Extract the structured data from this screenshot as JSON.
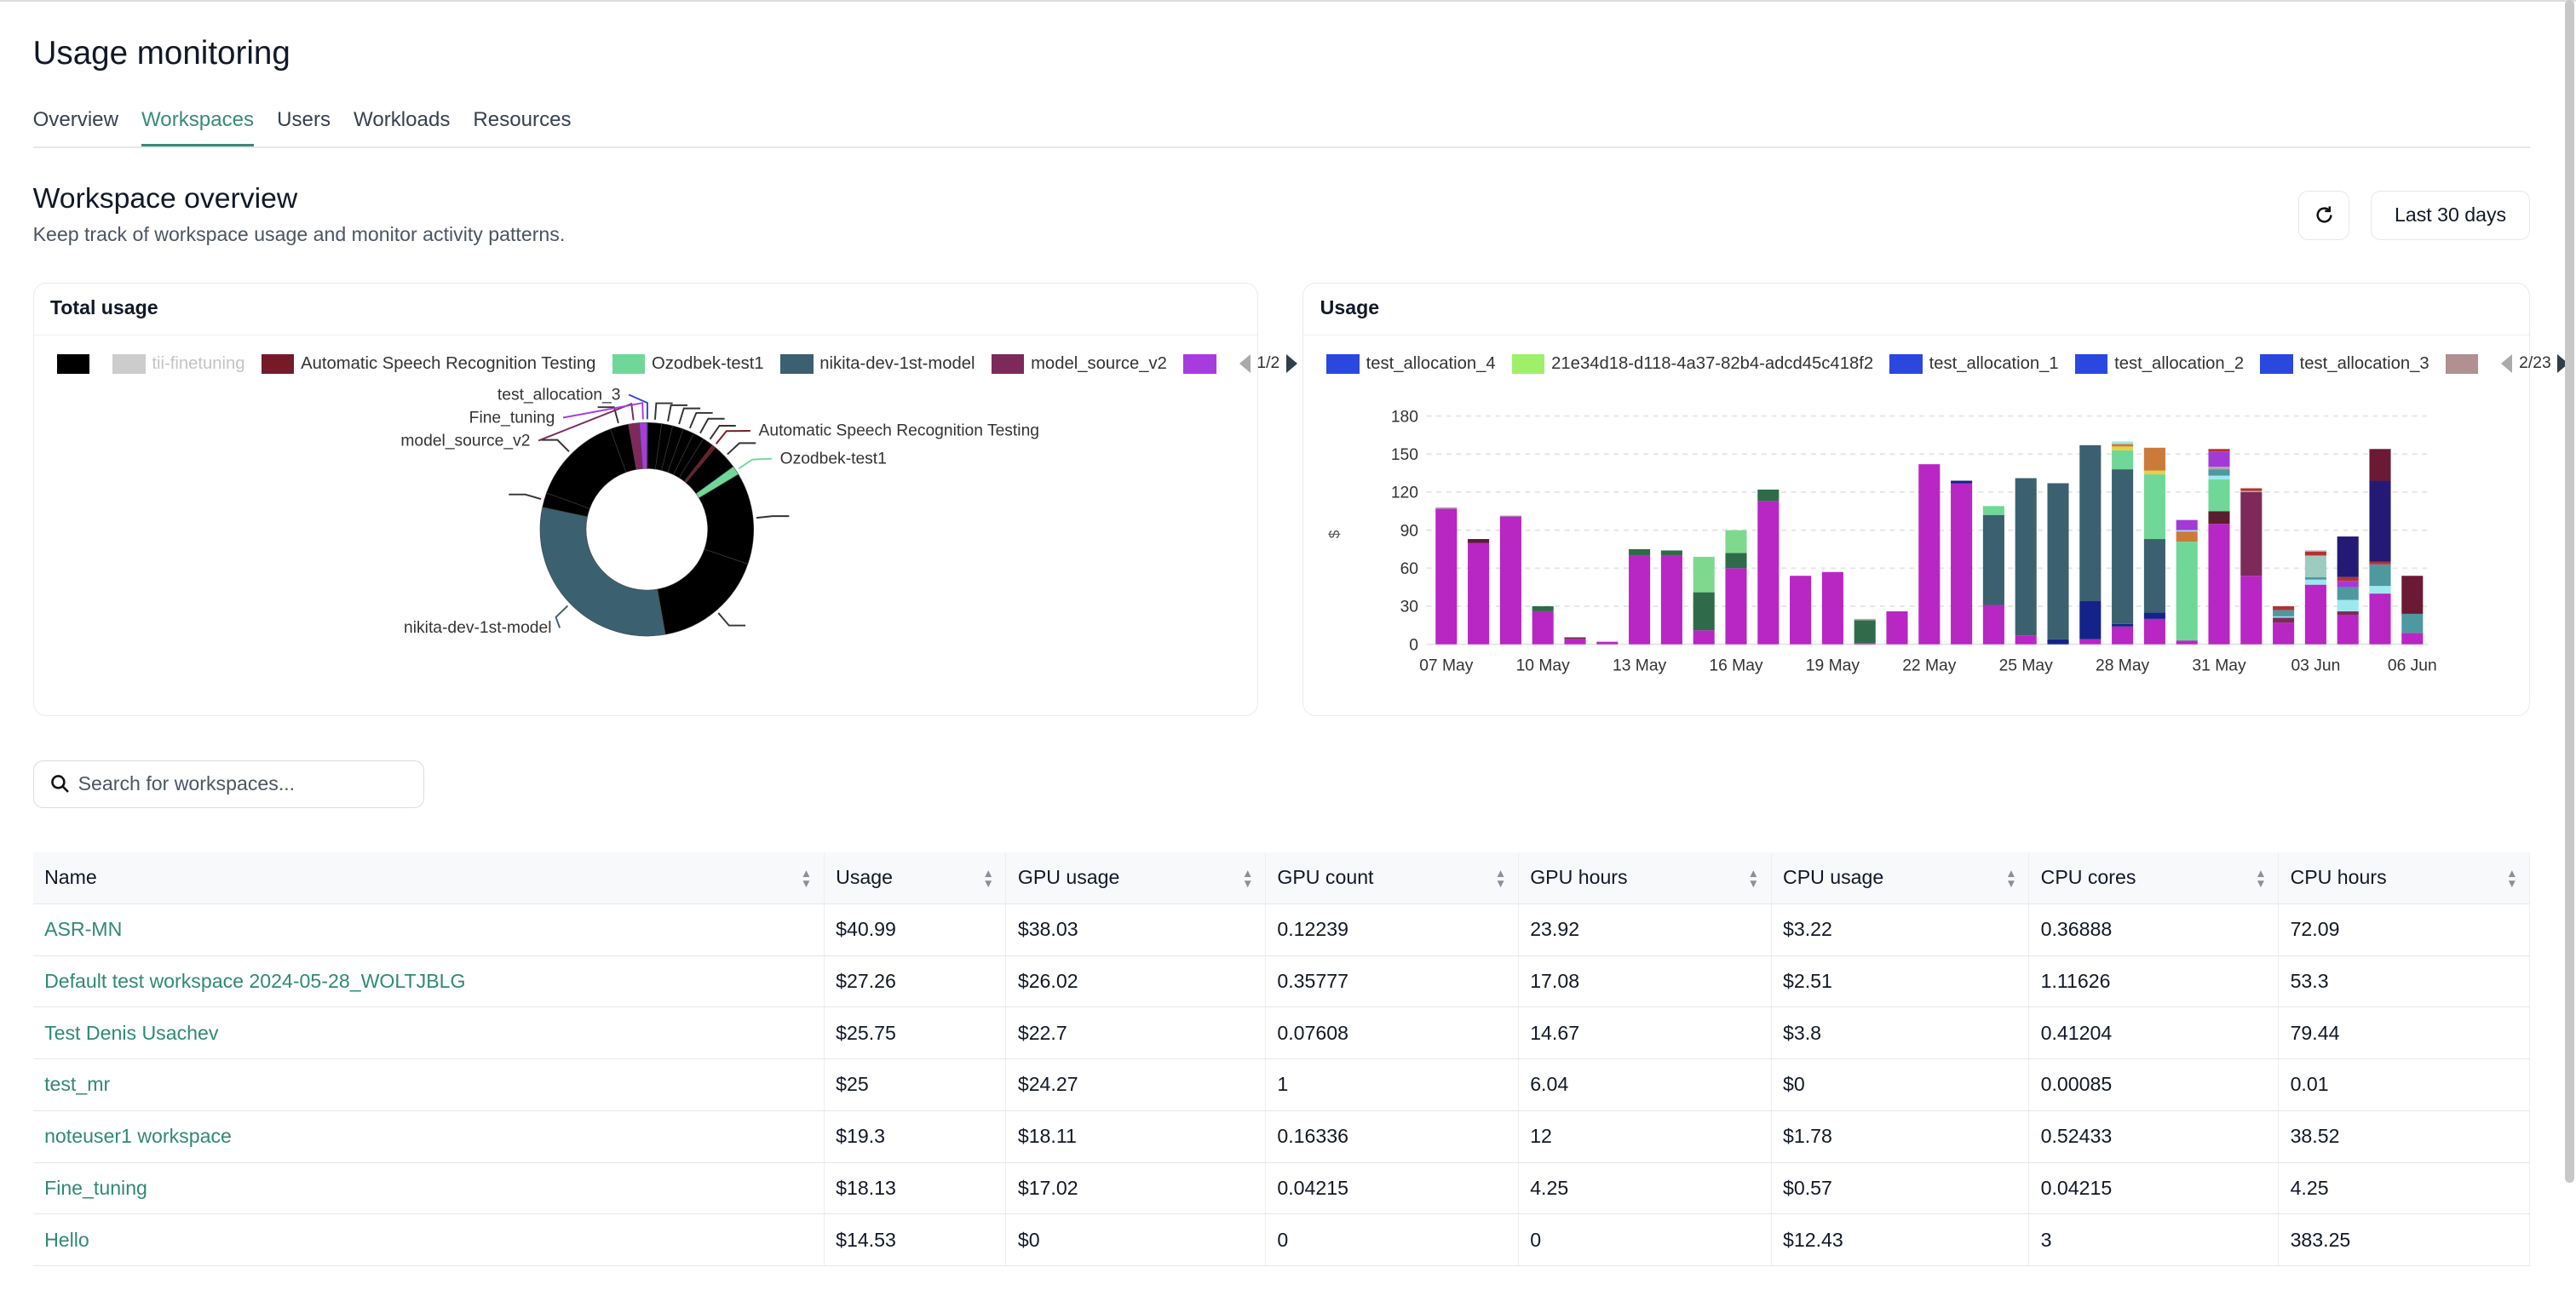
{
  "page": {
    "title": "Usage monitoring"
  },
  "tabs": [
    {
      "label": "Overview"
    },
    {
      "label": "Workspaces",
      "active": true
    },
    {
      "label": "Users"
    },
    {
      "label": "Workloads"
    },
    {
      "label": "Resources"
    }
  ],
  "section": {
    "title": "Workspace overview",
    "subtitle": "Keep track of workspace usage and monitor activity patterns.",
    "refresh_icon": "refresh-icon",
    "range_label": "Last 30 days"
  },
  "total_card": {
    "title": "Total usage",
    "legend": [
      {
        "label": "",
        "color": "#000000"
      },
      {
        "label": "tii-finetuning",
        "color": "#cccccc",
        "disabled": true
      },
      {
        "label": "Automatic Speech Recognition Testing",
        "color": "#761a2a"
      },
      {
        "label": "Ozodbek-test1",
        "color": "#6fd898"
      },
      {
        "label": "nikita-dev-1st-model",
        "color": "#3b6070"
      },
      {
        "label": "model_source_v2",
        "color": "#7d2a5a"
      },
      {
        "label": "",
        "color": "#a83be0"
      }
    ],
    "pager": "1/2"
  },
  "usage_card": {
    "title": "Usage",
    "legend": [
      {
        "label": "test_allocation_4",
        "color": "#2a47e0"
      },
      {
        "label": "21e34d18-d118-4a37-82b4-adcd45c418f2",
        "color": "#9ef06a"
      },
      {
        "label": "test_allocation_1",
        "color": "#2a47e0"
      },
      {
        "label": "test_allocation_2",
        "color": "#2a47e0"
      },
      {
        "label": "test_allocation_3",
        "color": "#2a47e0"
      },
      {
        "label": "",
        "color": "#b09090"
      }
    ],
    "pager": "2/23"
  },
  "chart_data": [
    {
      "type": "pie",
      "donut": true,
      "slices": [
        {
          "label": "test_allocation_3",
          "value": 0.5,
          "color": "#2a47e0",
          "shown": true
        },
        {
          "label": "",
          "value": 7.5,
          "color": "#000000"
        },
        {
          "label": "",
          "value": 6,
          "color": "#000000"
        },
        {
          "label": "",
          "value": 6,
          "color": "#000000"
        },
        {
          "label": "",
          "value": 6,
          "color": "#000000"
        },
        {
          "label": "",
          "value": 6,
          "color": "#000000"
        },
        {
          "label": "",
          "value": 6,
          "color": "#000000"
        },
        {
          "label": "Automatic Speech Recognition Testing",
          "value": 2,
          "color": "#761a2a",
          "shown": true
        },
        {
          "label": "",
          "value": 14,
          "color": "#000000"
        },
        {
          "label": "Ozodbek-test1",
          "value": 5,
          "color": "#6fd898",
          "shown": true
        },
        {
          "label": "",
          "value": 50,
          "color": "#000000"
        },
        {
          "label": "",
          "value": 61,
          "color": "#000000"
        },
        {
          "label": "nikita-dev-1st-model",
          "value": 112,
          "color": "#3b6070",
          "shown": true
        },
        {
          "label": "",
          "value": 8,
          "color": "#000000"
        },
        {
          "label": "",
          "value": 50,
          "color": "#000000"
        },
        {
          "label": "",
          "value": 10,
          "color": "#000000"
        },
        {
          "label": "model_source_v2",
          "value": 6,
          "color": "#7d2a5a",
          "shown": true
        },
        {
          "label": "Fine_tuning",
          "value": 4,
          "color": "#a83be0",
          "shown": true
        }
      ]
    },
    {
      "type": "bar",
      "stacked": true,
      "ylabel": "$",
      "ylim": [
        0,
        180
      ],
      "yticks": [
        "0",
        "30",
        "60",
        "90",
        "120",
        "150",
        "180"
      ],
      "grid": true,
      "xticks": [
        "07 May",
        "10 May",
        "13 May",
        "16 May",
        "19 May",
        "22 May",
        "25 May",
        "28 May",
        "31 May",
        "03 Jun",
        "06 Jun"
      ],
      "palette": {
        "magenta": "#b826c4",
        "dkgreen": "#2f6b4a",
        "ltgreen": "#7ed98f",
        "dkred": "#5a1f2e",
        "slate": "#3b6070",
        "navy": "#14238a",
        "mint": "#6fd898",
        "yellow": "#e8d040",
        "orange": "#cc7a3a",
        "cyan": "#9de8ee",
        "teal": "#4e98a0",
        "purple": "#a23ad8",
        "red": "#b83030",
        "plum": "#7d2a5a",
        "sage": "#9ecbc0",
        "indigo": "#241a75",
        "wine": "#6a1a35",
        "grey": "#b0a8a8"
      },
      "days": [
        {
          "x": "07 May",
          "segments": [
            [
              "magenta",
              107
            ],
            [
              "grey",
              1
            ]
          ]
        },
        {
          "x": "08 May",
          "segments": [
            [
              "magenta",
              80
            ],
            [
              "dkred",
              3
            ]
          ]
        },
        {
          "x": "09 May",
          "segments": [
            [
              "magenta",
              101
            ],
            [
              "grey",
              0.5
            ]
          ]
        },
        {
          "x": "10 May",
          "segments": [
            [
              "magenta",
              26
            ],
            [
              "dkgreen",
              4
            ]
          ]
        },
        {
          "x": "11 May",
          "segments": [
            [
              "magenta",
              4
            ],
            [
              "plum",
              1.5
            ]
          ]
        },
        {
          "x": "12 May",
          "segments": [
            [
              "magenta",
              2
            ]
          ]
        },
        {
          "x": "13 May",
          "segments": [
            [
              "magenta",
              70
            ],
            [
              "dkgreen",
              5
            ]
          ]
        },
        {
          "x": "14 May",
          "segments": [
            [
              "magenta",
              70
            ],
            [
              "dkgreen",
              4
            ]
          ]
        },
        {
          "x": "15 May",
          "segments": [
            [
              "magenta",
              11
            ],
            [
              "dkgreen",
              30
            ],
            [
              "ltgreen",
              28
            ]
          ]
        },
        {
          "x": "16 May",
          "segments": [
            [
              "magenta",
              60
            ],
            [
              "dkgreen",
              12
            ],
            [
              "ltgreen",
              18
            ]
          ]
        },
        {
          "x": "17 May",
          "segments": [
            [
              "magenta",
              113
            ],
            [
              "dkgreen",
              9
            ]
          ]
        },
        {
          "x": "18 May",
          "segments": [
            [
              "magenta",
              54
            ]
          ]
        },
        {
          "x": "19 May",
          "segments": [
            [
              "magenta",
              57
            ]
          ]
        },
        {
          "x": "20 May",
          "segments": [
            [
              "magenta",
              1
            ],
            [
              "dkgreen",
              18
            ],
            [
              "grey",
              1
            ]
          ]
        },
        {
          "x": "21 May",
          "segments": [
            [
              "magenta",
              26
            ]
          ]
        },
        {
          "x": "22 May",
          "segments": [
            [
              "magenta",
              142
            ]
          ]
        },
        {
          "x": "23 May",
          "segments": [
            [
              "magenta",
              127
            ],
            [
              "navy",
              2
            ]
          ]
        },
        {
          "x": "24 May",
          "segments": [
            [
              "magenta",
              31
            ],
            [
              "slate",
              71
            ],
            [
              "mint",
              7
            ]
          ]
        },
        {
          "x": "25 May",
          "segments": [
            [
              "magenta",
              7
            ],
            [
              "slate",
              124
            ]
          ]
        },
        {
          "x": "26 May",
          "segments": [
            [
              "navy",
              4
            ],
            [
              "slate",
              123
            ]
          ]
        },
        {
          "x": "27 May",
          "segments": [
            [
              "magenta",
              4
            ],
            [
              "navy",
              30
            ],
            [
              "slate",
              123
            ]
          ]
        },
        {
          "x": "28 May",
          "segments": [
            [
              "magenta",
              14
            ],
            [
              "navy",
              2
            ],
            [
              "slate",
              122
            ],
            [
              "mint",
              15
            ],
            [
              "yellow",
              3
            ],
            [
              "orange",
              2
            ],
            [
              "cyan",
              2
            ]
          ]
        },
        {
          "x": "29 May",
          "segments": [
            [
              "magenta",
              20
            ],
            [
              "navy",
              5
            ],
            [
              "slate",
              58
            ],
            [
              "mint",
              51
            ],
            [
              "yellow",
              3
            ],
            [
              "orange",
              18
            ]
          ]
        },
        {
          "x": "30 May",
          "segments": [
            [
              "magenta",
              3
            ],
            [
              "mint",
              78
            ],
            [
              "orange",
              8
            ],
            [
              "cyan",
              1
            ],
            [
              "purple",
              8
            ]
          ]
        },
        {
          "x": "31 May",
          "segments": [
            [
              "magenta",
              95
            ],
            [
              "dkred",
              10
            ],
            [
              "mint",
              25
            ],
            [
              "cyan",
              3
            ],
            [
              "teal",
              5
            ],
            [
              "grey",
              2
            ],
            [
              "purple",
              12
            ],
            [
              "red",
              2
            ]
          ]
        },
        {
          "x": "01 Jun",
          "segments": [
            [
              "magenta",
              54
            ],
            [
              "plum",
              66
            ],
            [
              "grey",
              1
            ],
            [
              "red",
              2
            ]
          ]
        },
        {
          "x": "02 Jun",
          "segments": [
            [
              "magenta",
              17
            ],
            [
              "plum",
              4
            ],
            [
              "cyan",
              1
            ],
            [
              "teal",
              5
            ],
            [
              "red",
              3
            ]
          ]
        },
        {
          "x": "03 Jun",
          "segments": [
            [
              "magenta",
              47
            ],
            [
              "cyan",
              4
            ],
            [
              "teal",
              2
            ],
            [
              "sage",
              17
            ],
            [
              "red",
              3
            ],
            [
              "grey",
              1
            ]
          ]
        },
        {
          "x": "04 Jun",
          "segments": [
            [
              "magenta",
              23
            ],
            [
              "plum",
              3
            ],
            [
              "cyan",
              9
            ],
            [
              "teal",
              10
            ],
            [
              "purple",
              5
            ],
            [
              "red",
              3
            ],
            [
              "indigo",
              32
            ]
          ]
        },
        {
          "x": "05 Jun",
          "segments": [
            [
              "magenta",
              40
            ],
            [
              "cyan",
              6
            ],
            [
              "teal",
              17
            ],
            [
              "red",
              2
            ],
            [
              "indigo",
              64
            ],
            [
              "wine",
              25
            ]
          ]
        },
        {
          "x": "06 Jun",
          "segments": [
            [
              "magenta",
              9
            ],
            [
              "teal",
              15
            ],
            [
              "wine",
              30
            ]
          ]
        }
      ]
    }
  ],
  "search": {
    "placeholder": "Search for workspaces..."
  },
  "table": {
    "columns": [
      "Name",
      "Usage",
      "GPU usage",
      "GPU count",
      "GPU hours",
      "CPU usage",
      "CPU cores",
      "CPU hours"
    ],
    "rows": [
      [
        "ASR-MN",
        "$40.99",
        "$38.03",
        "0.12239",
        "23.92",
        "$3.22",
        "0.36888",
        "72.09"
      ],
      [
        "Default test workspace 2024-05-28_WOLTJBLG",
        "$27.26",
        "$26.02",
        "0.35777",
        "17.08",
        "$2.51",
        "1.11626",
        "53.3"
      ],
      [
        "Test Denis Usachev",
        "$25.75",
        "$22.7",
        "0.07608",
        "14.67",
        "$3.8",
        "0.41204",
        "79.44"
      ],
      [
        "test_mr",
        "$25",
        "$24.27",
        "1",
        "6.04",
        "$0",
        "0.00085",
        "0.01"
      ],
      [
        "noteuser1 workspace",
        "$19.3",
        "$18.11",
        "0.16336",
        "12",
        "$1.78",
        "0.52433",
        "38.52"
      ],
      [
        "Fine_tuning",
        "$18.13",
        "$17.02",
        "0.04215",
        "4.25",
        "$0.57",
        "0.04215",
        "4.25"
      ],
      [
        "Hello",
        "$14.53",
        "$0",
        "0",
        "0",
        "$12.43",
        "3",
        "383.25"
      ]
    ]
  }
}
